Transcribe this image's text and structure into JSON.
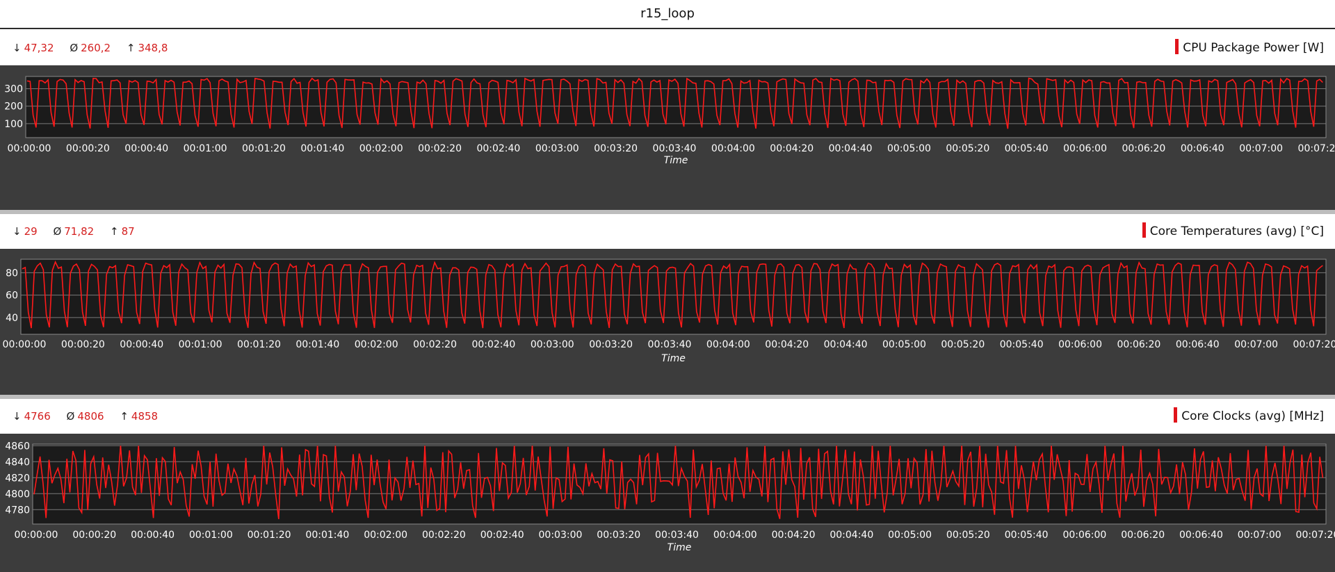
{
  "title": "r15_loop",
  "colors": {
    "line": "#ff1a1a",
    "plot_bg": "#1b1b1b",
    "panel_bg": "#3c3c3c",
    "stat_value": "#d42020",
    "grid": "#7a7a7a"
  },
  "icons": {
    "min": "arrow-down-icon",
    "avg": "average-icon",
    "max": "arrow-up-icon"
  },
  "charts": [
    {
      "stats": {
        "min_symbol": "↓",
        "min": "47,32",
        "avg_symbol": "Ø",
        "avg": "260,2",
        "max_symbol": "↑",
        "max": "348,8"
      },
      "legend": "CPU Package Power [W]",
      "xlabel": "Time"
    },
    {
      "stats": {
        "min_symbol": "↓",
        "min": "29",
        "avg_symbol": "Ø",
        "avg": "71,82",
        "max_symbol": "↑",
        "max": "87"
      },
      "legend": "Core Temperatures (avg) [°C]",
      "xlabel": "Time"
    },
    {
      "stats": {
        "min_symbol": "↓",
        "min": "4766",
        "avg_symbol": "Ø",
        "avg": "4806",
        "max_symbol": "↑",
        "max": "4858"
      },
      "legend": "Core Clocks (avg) [MHz]",
      "xlabel": "Time"
    }
  ],
  "chart_data": [
    {
      "type": "line",
      "title": "",
      "xlabel": "Time",
      "ylabel": "",
      "legend": "CPU Package Power [W]",
      "legend_placement": "top-right",
      "grid": true,
      "xlim": [
        0,
        448
      ],
      "ylim": [
        20,
        370
      ],
      "yticks": [
        100,
        200,
        300
      ],
      "xticks": [
        "00:00:00",
        "00:00:20",
        "00:00:40",
        "00:01:00",
        "00:01:20",
        "00:01:40",
        "00:02:00",
        "00:02:20",
        "00:02:40",
        "00:03:00",
        "00:03:20",
        "00:03:40",
        "00:04:00",
        "00:04:20",
        "00:04:40",
        "00:05:00",
        "00:05:20",
        "00:05:40",
        "00:06:00",
        "00:06:20",
        "00:06:40",
        "00:07:00",
        "00:07:20"
      ],
      "series": [
        {
          "name": "CPU Package Power [W]",
          "cycle_seconds": 6.2,
          "pattern": [
            345,
            340,
            160,
            85,
            347,
            345
          ],
          "values_note_min": 47.32,
          "avg": 260.2,
          "max": 348.8
        }
      ]
    },
    {
      "type": "line",
      "title": "",
      "xlabel": "Time",
      "ylabel": "",
      "legend": "Core Temperatures (avg) [°C]",
      "legend_placement": "top-right",
      "grid": true,
      "xlim": [
        0,
        448
      ],
      "ylim": [
        25,
        92
      ],
      "yticks": [
        40,
        60,
        80
      ],
      "xticks": [
        "00:00:00",
        "00:00:20",
        "00:00:40",
        "00:01:00",
        "00:01:20",
        "00:01:40",
        "00:02:00",
        "00:02:20",
        "00:02:40",
        "00:03:00",
        "00:03:20",
        "00:03:40",
        "00:04:00",
        "00:04:20",
        "00:04:40",
        "00:05:00",
        "00:05:20",
        "00:05:40",
        "00:06:00",
        "00:06:20",
        "00:06:40",
        "00:07:00",
        "00:07:20"
      ],
      "series": [
        {
          "name": "Core Temperatures (avg) [°C]",
          "cycle_seconds": 6.2,
          "pattern": [
            86,
            85,
            45,
            33,
            80,
            87
          ],
          "values_note_min": 29,
          "avg": 71.82,
          "max": 87
        }
      ]
    },
    {
      "type": "line",
      "title": "",
      "xlabel": "Time",
      "ylabel": "",
      "legend": "Core Clocks (avg) [MHz]",
      "legend_placement": "top-right",
      "grid": true,
      "xlim": [
        0,
        448
      ],
      "ylim": [
        4762,
        4862
      ],
      "yticks": [
        4780,
        4800,
        4820,
        4840,
        4860
      ],
      "xticks": [
        "00:00:00",
        "00:00:20",
        "00:00:40",
        "00:01:00",
        "00:01:20",
        "00:01:40",
        "00:02:00",
        "00:02:20",
        "00:02:40",
        "00:03:00",
        "00:03:20",
        "00:03:40",
        "00:04:00",
        "00:04:20",
        "00:04:40",
        "00:05:00",
        "00:05:20",
        "00:05:40",
        "00:06:00",
        "00:06:20",
        "00:06:40",
        "00:07:00",
        "00:07:20"
      ],
      "series": [
        {
          "name": "Core Clocks (avg) [MHz]",
          "cycle_seconds": 6.2,
          "pattern": [
            4798,
            4833,
            4833,
            4798,
            4790,
            4858
          ],
          "values_note_min": 4766,
          "avg": 4806,
          "max": 4858
        }
      ]
    }
  ]
}
